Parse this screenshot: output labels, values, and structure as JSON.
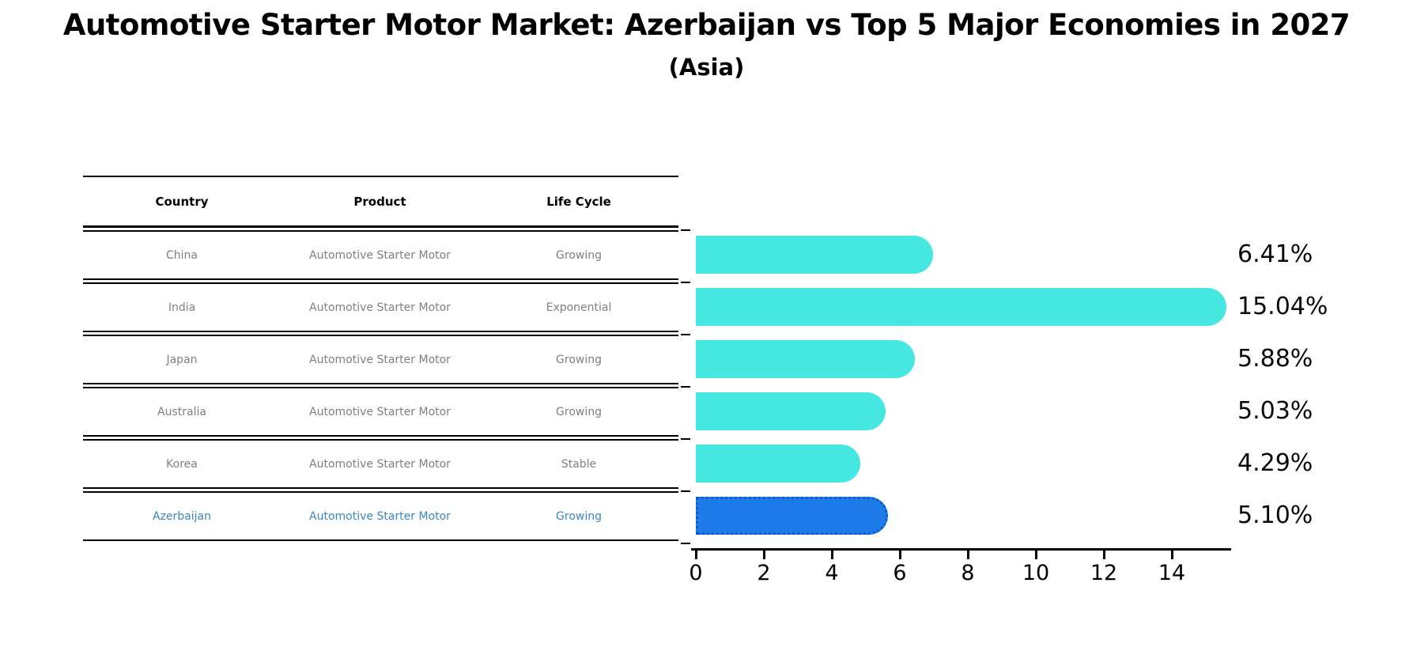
{
  "title": "Automotive Starter Motor Market: Azerbaijan vs Top 5 Major Economies in 2027",
  "subtitle": "(Asia)",
  "table": {
    "headers": [
      "Country",
      "Product",
      "Life Cycle"
    ],
    "rows": [
      {
        "country": "China",
        "product": "Automotive Starter Motor",
        "life_cycle": "Growing",
        "highlight": false
      },
      {
        "country": "India",
        "product": "Automotive Starter Motor",
        "life_cycle": "Exponential",
        "highlight": false
      },
      {
        "country": "Japan",
        "product": "Automotive Starter Motor",
        "life_cycle": "Growing",
        "highlight": false
      },
      {
        "country": "Australia",
        "product": "Automotive Starter Motor",
        "life_cycle": "Growing",
        "highlight": false
      },
      {
        "country": "Korea",
        "product": "Automotive Starter Motor",
        "life_cycle": "Stable",
        "highlight": false
      },
      {
        "country": "Azerbaijan",
        "product": "Automotive Starter Motor",
        "life_cycle": "Growing",
        "highlight": true
      }
    ]
  },
  "chart_data": {
    "type": "bar",
    "orientation": "horizontal",
    "categories": [
      "China",
      "India",
      "Japan",
      "Australia",
      "Korea",
      "Azerbaijan"
    ],
    "values": [
      6.41,
      15.04,
      5.88,
      5.03,
      4.29,
      5.1
    ],
    "value_labels": [
      "6.41%",
      "15.04%",
      "5.88%",
      "5.03%",
      "4.29%",
      "5.10%"
    ],
    "xlim": [
      0,
      15.75
    ],
    "xticks": [
      0,
      2,
      4,
      6,
      8,
      10,
      12,
      14
    ],
    "grid": false,
    "bar_color": "#45E8E1",
    "highlight_color": "#1E7CEA",
    "highlight_border_color": "#0D5EC9",
    "highlight_index": 5,
    "highlight_text_color": "#3A87C8",
    "axis_color": "#000000",
    "background_color": "#FFFFFF"
  }
}
